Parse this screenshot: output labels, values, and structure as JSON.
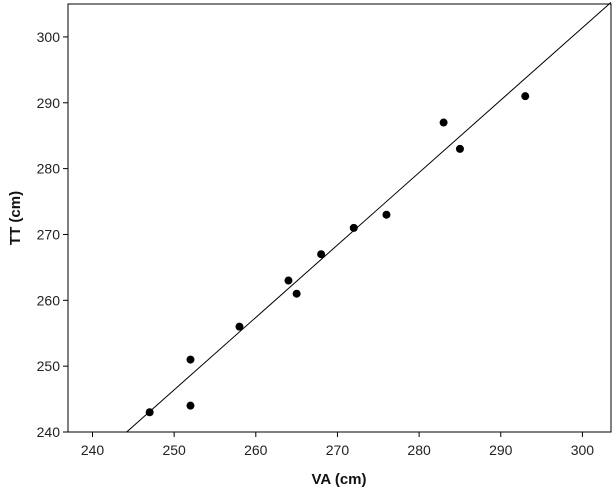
{
  "chart_data": {
    "type": "scatter",
    "title": "",
    "xlabel": "VA (cm)",
    "ylabel": "TT (cm)",
    "xlim": [
      237,
      303.5
    ],
    "ylim": [
      240,
      305
    ],
    "xticks": [
      240,
      250,
      260,
      270,
      280,
      290,
      300
    ],
    "yticks": [
      240,
      250,
      260,
      270,
      280,
      290,
      300
    ],
    "grid": false,
    "legend": "none",
    "marker_color": "#000000",
    "line_color": "#000000",
    "points": [
      {
        "x": 247,
        "y": 243
      },
      {
        "x": 252,
        "y": 251
      },
      {
        "x": 252,
        "y": 244
      },
      {
        "x": 258,
        "y": 256
      },
      {
        "x": 264,
        "y": 263
      },
      {
        "x": 265,
        "y": 261
      },
      {
        "x": 268,
        "y": 267
      },
      {
        "x": 272,
        "y": 271
      },
      {
        "x": 276,
        "y": 273
      },
      {
        "x": 283,
        "y": 287
      },
      {
        "x": 285,
        "y": 283
      },
      {
        "x": 293,
        "y": 291
      }
    ],
    "fit_line": {
      "slope": 1.1,
      "intercept": -28.6
    }
  }
}
